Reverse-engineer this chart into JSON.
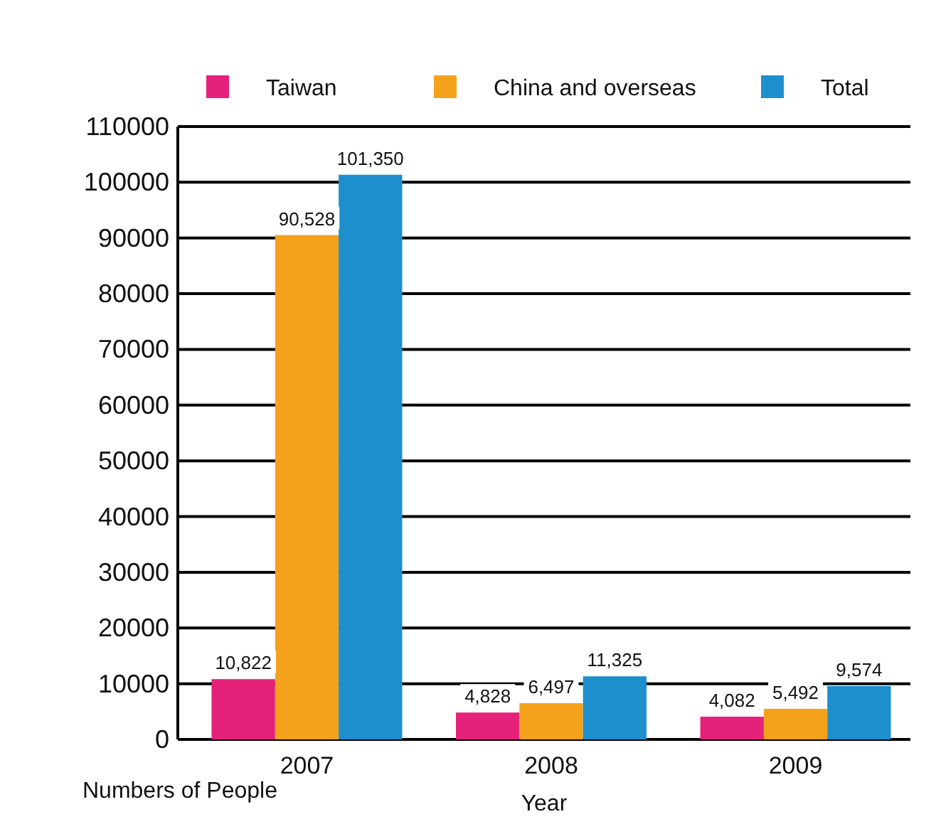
{
  "chart_data": {
    "type": "bar",
    "categories": [
      "2007",
      "2008",
      "2009"
    ],
    "xlabel": "Year",
    "ylabel": "Numbers of People",
    "ylim": [
      0,
      110000
    ],
    "yticks": [
      0,
      10000,
      20000,
      30000,
      40000,
      50000,
      60000,
      70000,
      80000,
      90000,
      100000,
      110000
    ],
    "grid": "y",
    "legend": "top",
    "series": [
      {
        "name": "Taiwan",
        "color": "#e5217a",
        "values": [
          10822,
          4828,
          4082
        ],
        "value_labels": [
          "10,822",
          "4,828",
          "4,082"
        ]
      },
      {
        "name": "China and overseas",
        "color": "#f4a21c",
        "values": [
          90528,
          6497,
          5492
        ],
        "value_labels": [
          "90,528",
          "6,497",
          "5,492"
        ]
      },
      {
        "name": "Total",
        "color": "#1d8fcd",
        "values": [
          101350,
          11325,
          9574
        ],
        "value_labels": [
          "101,350",
          "11,325",
          "9,574"
        ]
      }
    ]
  }
}
